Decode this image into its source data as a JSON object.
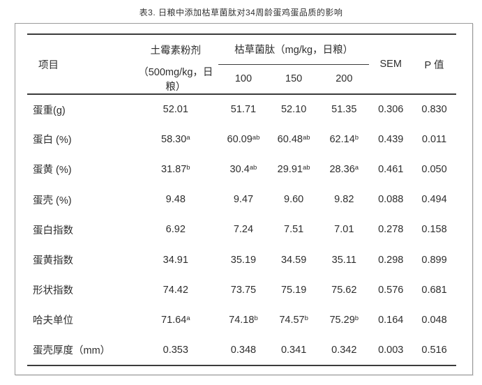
{
  "title": "表3. 日粮中添加枯草菌肽对34周龄蛋鸡蛋品质的影响",
  "table": {
    "header": {
      "item": "项目",
      "oxytetracycline_line1": "土霉素粉剂",
      "oxytetracycline_line2": "（500mg/kg，日粮）",
      "group_label": "枯草菌肽（mg/kg，日粮）",
      "group_cols": [
        "100",
        "150",
        "200"
      ],
      "sem": "SEM",
      "p": "P 值"
    },
    "rows": [
      {
        "label": "蛋重(g)",
        "cells": [
          "52.01",
          "51.71",
          "52.10",
          "51.35",
          "0.306",
          "0.830"
        ]
      },
      {
        "label": "蛋白 (%)",
        "cells": [
          "58.30^a",
          "60.09^ab",
          "60.48^ab",
          "62.14^b",
          "0.439",
          "0.011"
        ]
      },
      {
        "label": "蛋黄 (%)",
        "cells": [
          "31.87^b",
          "30.4^ab",
          "29.91^ab",
          "28.36^a",
          "0.461",
          "0.050"
        ]
      },
      {
        "label": "蛋壳 (%)",
        "cells": [
          "9.48",
          "9.47",
          "9.60",
          "9.82",
          "0.088",
          "0.494"
        ]
      },
      {
        "label": "蛋白指数",
        "cells": [
          "6.92",
          "7.24",
          "7.51",
          "7.01",
          "0.278",
          "0.158"
        ]
      },
      {
        "label": "蛋黄指数",
        "cells": [
          "34.91",
          "35.19",
          "34.59",
          "35.11",
          "0.298",
          "0.899"
        ]
      },
      {
        "label": "形状指数",
        "cells": [
          "74.42",
          "73.75",
          "75.19",
          "75.62",
          "0.576",
          "0.681"
        ]
      },
      {
        "label": "哈夫单位",
        "cells": [
          "71.64^a",
          "74.18^b",
          "74.57^b",
          "75.29^b",
          "0.164",
          "0.048"
        ]
      },
      {
        "label": "蛋壳厚度（mm）",
        "cells": [
          "0.353",
          "0.348",
          "0.341",
          "0.342",
          "0.003",
          "0.516"
        ]
      }
    ]
  },
  "colors": {
    "text": "#2e2e2e",
    "rule": "#3b3b3b",
    "panel_border": "#9a9a9a",
    "background": "#ffffff"
  }
}
